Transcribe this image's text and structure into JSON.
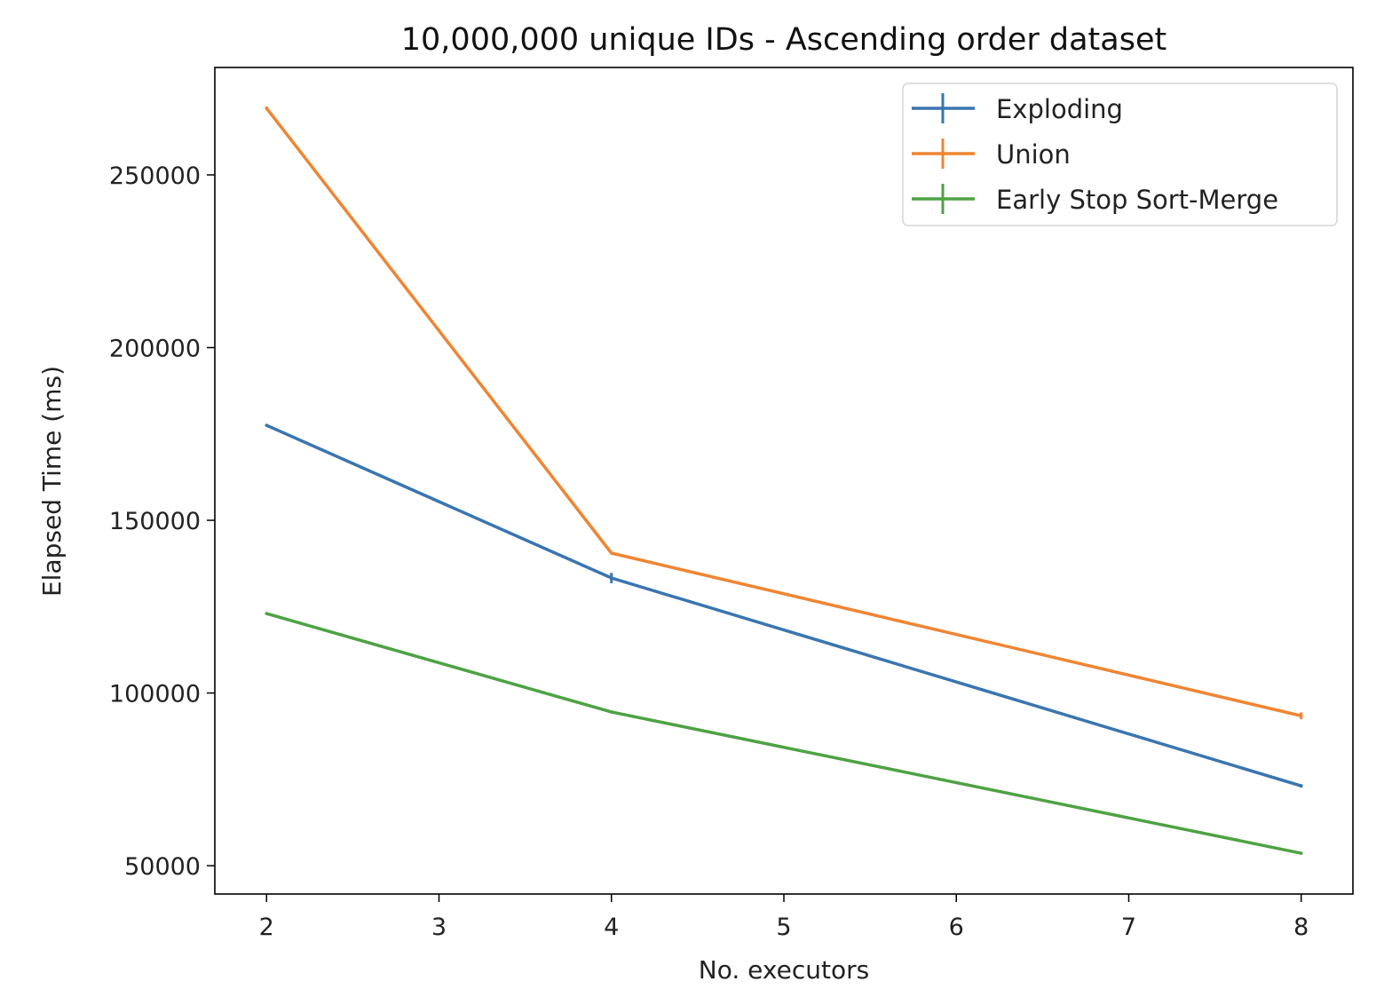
{
  "chart_data": {
    "type": "line",
    "title": "10,000,000 unique IDs - Ascending order dataset",
    "xlabel": "No. executors",
    "ylabel": "Elapsed Time (ms)",
    "xlim": [
      1.7,
      8.3
    ],
    "ylim": [
      41800,
      281100
    ],
    "xticks": [
      2,
      3,
      4,
      5,
      6,
      7,
      8
    ],
    "yticks": [
      50000,
      100000,
      150000,
      200000,
      250000
    ],
    "grid": false,
    "legend_placement": "upper right",
    "x": [
      2,
      4,
      8
    ],
    "series": [
      {
        "name": "Exploding",
        "color": "#3a75b0",
        "values": [
          177500,
          133300,
          73100
        ],
        "yerr": [
          300,
          1500,
          500
        ]
      },
      {
        "name": "Union",
        "color": "#ef8533",
        "values": [
          269300,
          140500,
          93400
        ],
        "yerr": [
          500,
          300,
          1000
        ]
      },
      {
        "name": "Early Stop Sort-Merge",
        "color": "#4ea244",
        "values": [
          123000,
          94500,
          53600
        ],
        "yerr": [
          200,
          200,
          300
        ]
      }
    ]
  }
}
